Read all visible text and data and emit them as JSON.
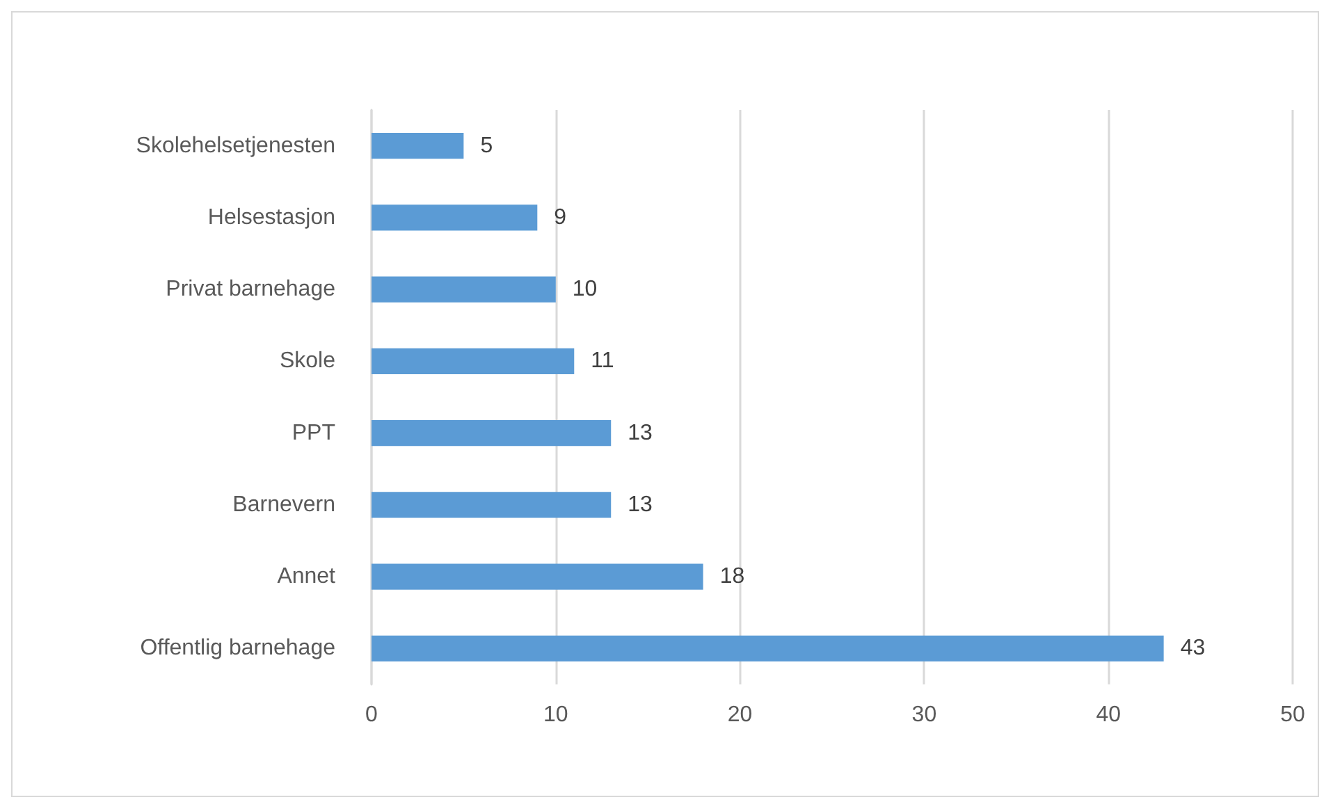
{
  "chart_data": {
    "type": "bar",
    "orientation": "horizontal",
    "categories": [
      "Skolehelsetjenesten",
      "Helsestasjon",
      "Privat barnehage",
      "Skole",
      "PPT",
      "Barnevern",
      "Annet",
      "Offentlig barnehage"
    ],
    "values": [
      5,
      9,
      10,
      11,
      13,
      13,
      18,
      43
    ],
    "color": "#5b9bd5",
    "xlim": [
      0,
      50
    ],
    "xticks": [
      0,
      10,
      20,
      30,
      40,
      50
    ],
    "grid": "x",
    "data_labels": true
  }
}
